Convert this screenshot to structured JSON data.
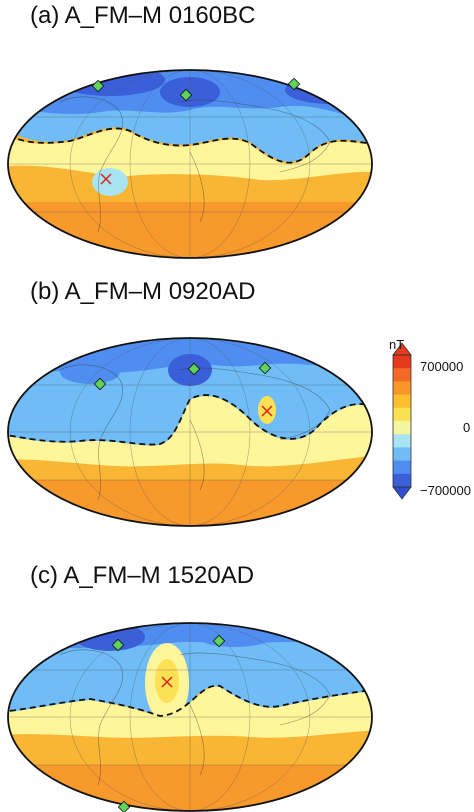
{
  "panels": [
    {
      "title": "(a) A_FM–M 0160BC"
    },
    {
      "title": "(b) A_FM–M 0920AD"
    },
    {
      "title": "(c) A_FM–M 1520AD"
    }
  ],
  "colorbar": {
    "unit": "nT",
    "max_label": "700000",
    "zero_label": "0",
    "min_label": "−700000",
    "colors": [
      "#3a5fd9",
      "#4f8ef0",
      "#6fbcf7",
      "#a8e4f2",
      "#f6f6a0",
      "#fbe153",
      "#fcbf2e",
      "#f8962a",
      "#f36a25",
      "#e53a1c"
    ]
  },
  "colors": {
    "negative_deep": "#2f5fd6",
    "negative": "#5aa3f2",
    "negative_light": "#9fdcf5",
    "positive_light": "#fff59a",
    "positive": "#fbc03a",
    "positive_deep": "#f7902a",
    "marker_diamond": "#5fd35a",
    "marker_cross": "#e02020"
  }
}
